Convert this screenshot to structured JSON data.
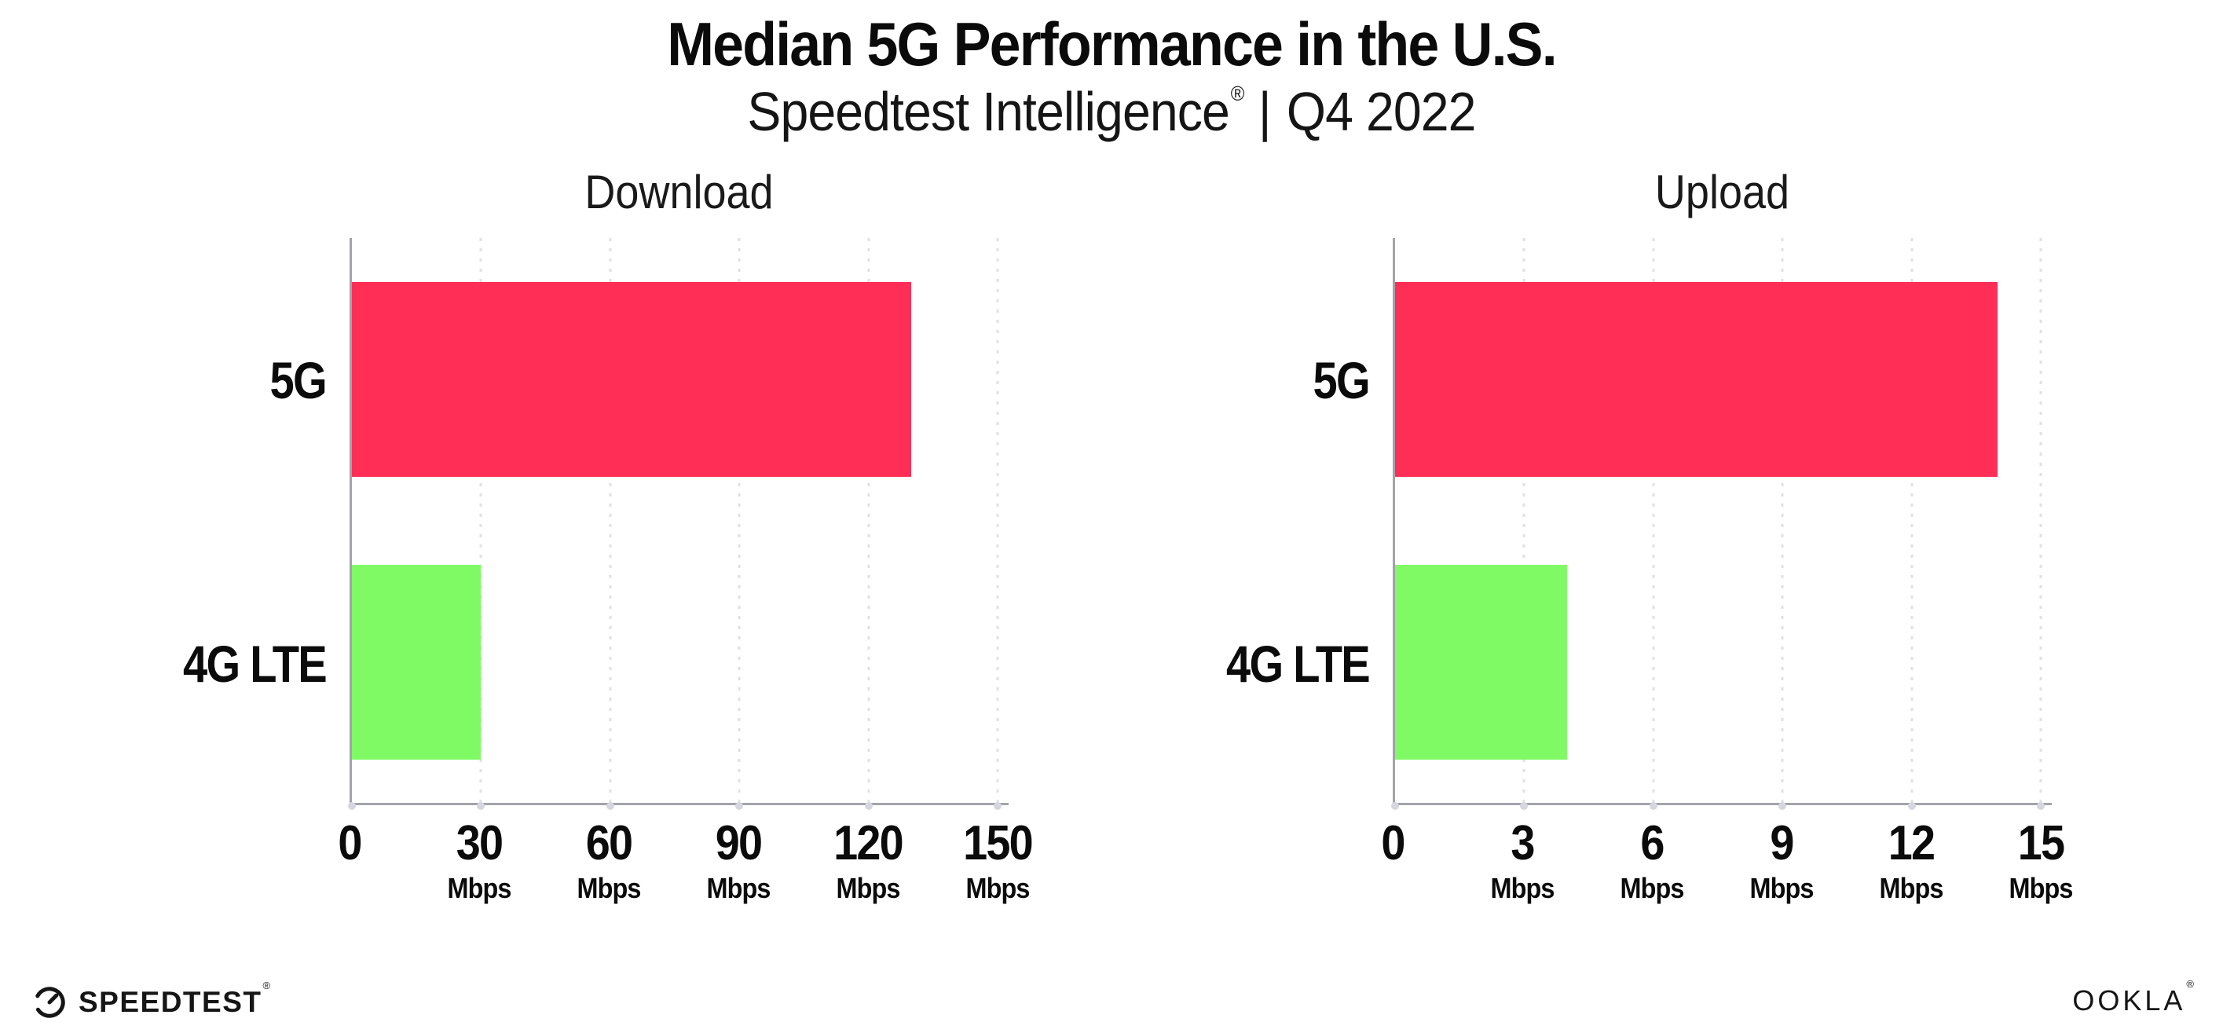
{
  "header": {
    "title": "Median 5G Performance in the U.S.",
    "subtitle_brand": "Speedtest Intelligence",
    "subtitle_registered": "®",
    "subtitle_separator": "|",
    "subtitle_period": "Q4 2022"
  },
  "chart_data": [
    {
      "type": "bar",
      "orientation": "horizontal",
      "title": "Download",
      "categories": [
        "5G",
        "4G LTE"
      ],
      "values": [
        130,
        30
      ],
      "unit": "Mbps",
      "xlim": [
        0,
        150
      ],
      "xticks": [
        0,
        30,
        60,
        90,
        120,
        150
      ],
      "grid": "vertical-dotted",
      "legend": "none",
      "bar_colors": [
        "#FF2E56",
        "#7FFA64"
      ]
    },
    {
      "type": "bar",
      "orientation": "horizontal",
      "title": "Upload",
      "categories": [
        "5G",
        "4G LTE"
      ],
      "values": [
        14,
        4
      ],
      "unit": "Mbps",
      "xlim": [
        0,
        15
      ],
      "xticks": [
        0,
        3,
        6,
        9,
        12,
        15
      ],
      "grid": "vertical-dotted",
      "legend": "none",
      "bar_colors": [
        "#FF2E56",
        "#7FFA64"
      ]
    }
  ],
  "footer": {
    "speedtest_label": "SPEEDTEST",
    "speedtest_mark": "®",
    "ookla_label": "OOKLA",
    "ookla_mark": "®"
  },
  "colors": {
    "bar_5g": "#FF2E56",
    "bar_4g_lte": "#7FFA64",
    "axis": "#A3A3AA",
    "gridline": "#E0E0E8",
    "tick_dot": "#D6D6E0",
    "text": "#0B0B0B"
  }
}
